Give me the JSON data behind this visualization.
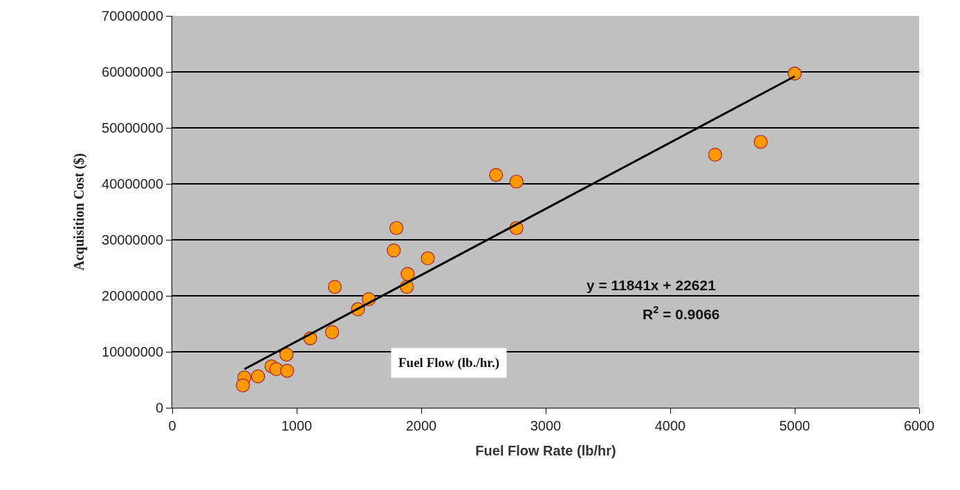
{
  "chart_data": {
    "type": "scatter",
    "xlabel": "Fuel Flow Rate (lb/hr)",
    "ylabel": "Acquisition Cost ($)",
    "series": [
      {
        "color": "#ff9900",
        "marker": "circle",
        "x": [
          5000,
          4727,
          4361,
          2601,
          2765,
          2765,
          1801,
          1780,
          2053,
          1891,
          1885,
          1306,
          1579,
          1492,
          1109,
          1284,
          918,
          798,
          836,
          923,
          689,
          579,
          568
        ],
        "values": [
          59700000,
          47500000,
          45200000,
          41600000,
          40400000,
          32100000,
          32100000,
          28100000,
          26700000,
          23900000,
          21600000,
          21600000,
          19400000,
          17600000,
          12400000,
          13500000,
          9500000,
          7400000,
          6900000,
          6600000,
          5600000,
          5400000,
          4000000
        ]
      },
      {
        "type": "line",
        "color": "#000000",
        "line_style": "solid",
        "x": [
          580,
          5000
        ],
        "values": [
          6900000,
          59200000
        ]
      }
    ],
    "annotations": [
      "y = 11841x + 22621",
      "R$^{2}$ = 0.9066",
      "Fuel Flow (lb./hr.)"
    ],
    "xlim": [
      0,
      6000
    ],
    "xticks": [
      0,
      1000,
      2000,
      3000,
      4000,
      5000,
      6000
    ],
    "ylim": [
      0,
      70000000
    ],
    "yticks": [
      0,
      10000000,
      20000000,
      30000000,
      40000000,
      50000000,
      60000000,
      70000000
    ],
    "grid": "y"
  }
}
